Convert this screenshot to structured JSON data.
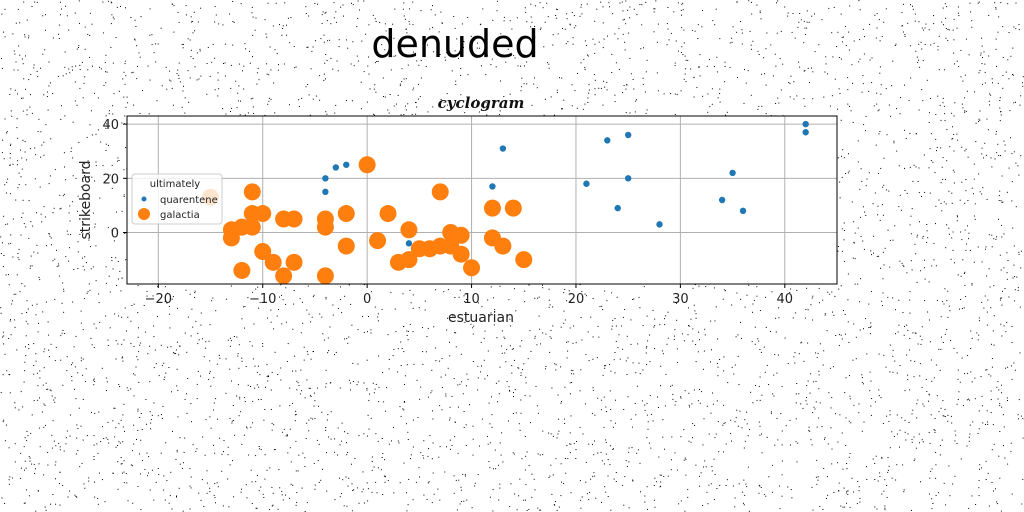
{
  "figure_title": "denuded",
  "chart_data": {
    "type": "scatter",
    "title": "cyclogram",
    "xlabel": "estuarian",
    "ylabel": "strikeboard",
    "xlim": [
      -23,
      45
    ],
    "ylim": [
      -19,
      43
    ],
    "xticks": [
      -20,
      -10,
      0,
      10,
      20,
      30,
      40
    ],
    "yticks": [
      0,
      20,
      40
    ],
    "grid": true,
    "legend": {
      "title": "ultimately",
      "placement": "center-left"
    },
    "series": [
      {
        "name": "quarentene",
        "color": "#1f77b4",
        "marker_size": "small",
        "points": [
          [
            42,
            40
          ],
          [
            42,
            37
          ],
          [
            25,
            36
          ],
          [
            23,
            34
          ],
          [
            13,
            31
          ],
          [
            -3,
            24
          ],
          [
            -2,
            25
          ],
          [
            -4,
            20
          ],
          [
            -4,
            15
          ],
          [
            12,
            17
          ],
          [
            21,
            18
          ],
          [
            25,
            20
          ],
          [
            35,
            22
          ],
          [
            24,
            9
          ],
          [
            28,
            3
          ],
          [
            34,
            12
          ],
          [
            36,
            8
          ],
          [
            4,
            -4
          ]
        ]
      },
      {
        "name": "galactia",
        "color": "#ff7f0e",
        "marker_size": "large",
        "points": [
          [
            -15,
            13
          ],
          [
            0,
            25
          ],
          [
            -11,
            15
          ],
          [
            7,
            15
          ],
          [
            -11,
            7
          ],
          [
            -10,
            7
          ],
          [
            -8,
            5
          ],
          [
            -7,
            5
          ],
          [
            -4,
            5
          ],
          [
            -2,
            7
          ],
          [
            2,
            7
          ],
          [
            -4,
            2
          ],
          [
            4,
            1
          ],
          [
            12,
            9
          ],
          [
            14,
            9
          ],
          [
            -13,
            -2
          ],
          [
            -13,
            1
          ],
          [
            -12,
            2
          ],
          [
            -11,
            2
          ],
          [
            1,
            -3
          ],
          [
            -2,
            -5
          ],
          [
            8,
            0
          ],
          [
            9,
            -1
          ],
          [
            12,
            -2
          ],
          [
            13,
            -5
          ],
          [
            -10,
            -7
          ],
          [
            -9,
            -11
          ],
          [
            -7,
            -11
          ],
          [
            -12,
            -14
          ],
          [
            -8,
            -16
          ],
          [
            -4,
            -16
          ],
          [
            3,
            -11
          ],
          [
            4,
            -10
          ],
          [
            5,
            -6
          ],
          [
            6,
            -6
          ],
          [
            7,
            -5
          ],
          [
            8,
            -5
          ],
          [
            9,
            -8
          ],
          [
            10,
            -13
          ],
          [
            15,
            -10
          ]
        ]
      }
    ]
  }
}
